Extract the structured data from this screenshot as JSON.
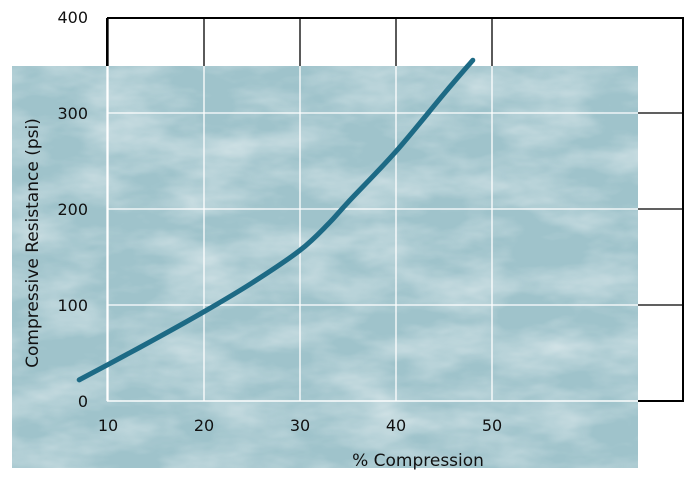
{
  "chart_data": {
    "type": "line",
    "title": "",
    "xlabel": "% Compression",
    "ylabel": "Compressive Resistance (psi)",
    "xlim": [
      0,
      55
    ],
    "ylim": [
      0,
      400
    ],
    "x_ticks": [
      "10",
      "20",
      "30",
      "40",
      "50"
    ],
    "y_ticks": [
      "0",
      "100",
      "200",
      "300",
      "400"
    ],
    "grid": true,
    "legend": "none",
    "series": [
      {
        "color": "#1d6a85",
        "x": [
          7,
          10,
          15,
          20,
          25,
          30,
          33,
          35,
          40,
          45,
          48
        ],
        "y": [
          22,
          38,
          65,
          93,
          123,
          157,
          185,
          207,
          260,
          320,
          355
        ]
      }
    ]
  },
  "colors": {
    "background_marble": "#9fc3cb",
    "grid": "#ffffff",
    "frame": "#000000",
    "line": "#1d6a85"
  }
}
